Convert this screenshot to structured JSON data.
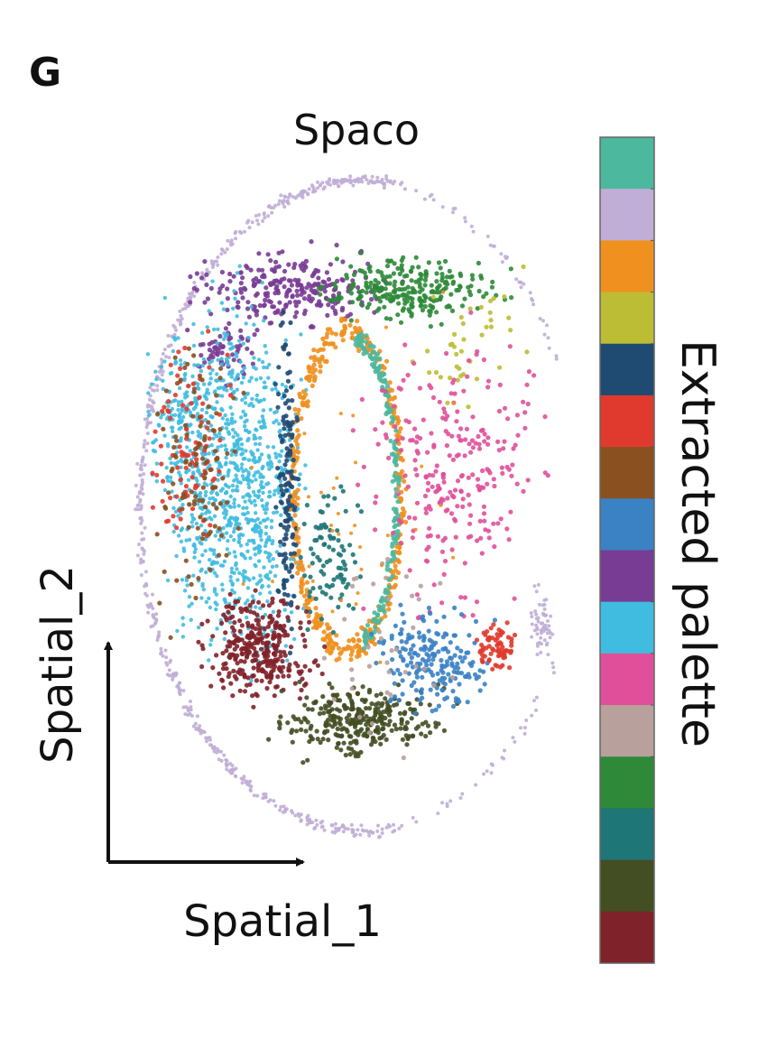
{
  "panel_label": "G",
  "title": "Spaco",
  "x_axis_label": "Spatial_1",
  "y_axis_label": "Spatial_2",
  "palette": {
    "label": "Extracted palette",
    "colors": [
      "#4cb89e",
      "#c0aed6",
      "#f0901e",
      "#bcbd34",
      "#1f4a72",
      "#e03a2e",
      "#8a5020",
      "#3a82c4",
      "#783c94",
      "#40bce0",
      "#e0509a",
      "#b8a09c",
      "#2e8a38",
      "#1e7676",
      "#434e22",
      "#80222a"
    ]
  }
}
